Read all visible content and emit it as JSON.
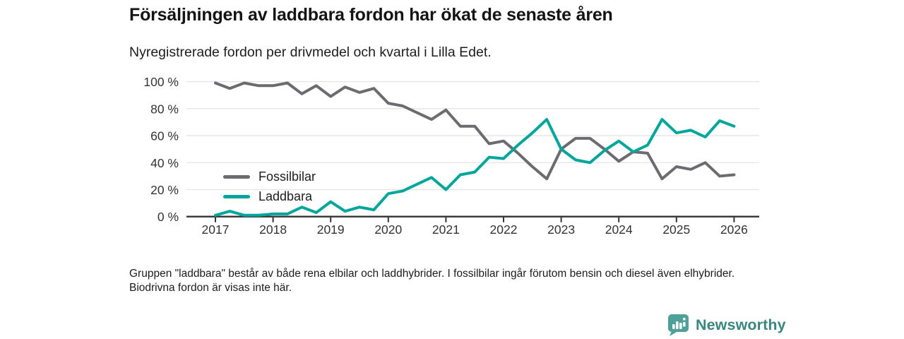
{
  "header": {
    "title": "Försäljningen av laddbara fordon har ökat de senaste åren",
    "subtitle": "Nyregistrerade fordon per drivmedel och kvartal i Lilla Edet."
  },
  "colors": {
    "fossil": "#6c6c70",
    "laddbara": "#00a69b",
    "grid": "#e4e4e4",
    "axis": "#333333",
    "tick_text": "#333333",
    "logo_fill": "#4fa099",
    "logo_text": "#38867f"
  },
  "chart_data": {
    "type": "line",
    "x_unit": "quarter",
    "x_start": "2017 Q1",
    "x_end": "2026 Q1",
    "x_tick_labels": [
      "2017",
      "2018",
      "2019",
      "2020",
      "2021",
      "2022",
      "2023",
      "2024",
      "2025",
      "2026"
    ],
    "y_ticks": [
      {
        "value": 0,
        "label": "0 %"
      },
      {
        "value": 20,
        "label": "20 %"
      },
      {
        "value": 40,
        "label": "40 %"
      },
      {
        "value": 60,
        "label": "60 %"
      },
      {
        "value": 80,
        "label": "80 %"
      },
      {
        "value": 100,
        "label": "100 %"
      }
    ],
    "ylim": [
      0,
      100
    ],
    "grid": "horizontal",
    "legend_position": "inside-left",
    "series": [
      {
        "name": "Fossilbilar",
        "color_key": "fossil",
        "values": [
          99,
          95,
          99,
          97,
          97,
          99,
          91,
          97,
          89,
          96,
          92,
          95,
          84,
          82,
          77,
          72,
          79,
          67,
          67,
          54,
          56,
          47,
          37,
          28,
          50,
          58,
          58,
          50,
          41,
          48,
          47,
          28,
          37,
          35,
          40,
          30,
          31
        ]
      },
      {
        "name": "Laddbara",
        "color_key": "laddbara",
        "values": [
          1,
          4,
          1,
          1,
          2,
          2,
          7,
          3,
          11,
          4,
          7,
          5,
          17,
          19,
          24,
          29,
          20,
          31,
          33,
          44,
          43,
          53,
          62,
          72,
          50,
          42,
          40,
          49,
          56,
          48,
          53,
          72,
          62,
          64,
          59,
          71,
          67
        ]
      }
    ]
  },
  "footer": {
    "note": "Gruppen \"laddbara\" består av både rena elbilar och laddhybrider. I fossilbilar ingår förutom bensin och diesel även elhybrider. Biodrivna fordon är visas inte här."
  },
  "branding": {
    "name": "Newsworthy",
    "icon": "bar-chart-bubble-icon"
  }
}
